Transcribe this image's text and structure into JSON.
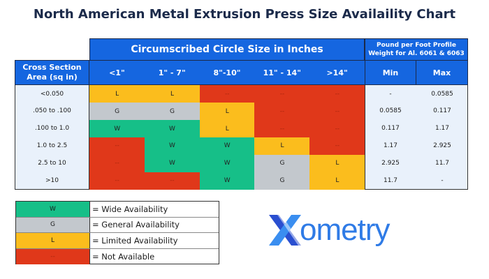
{
  "title": "North American Metal Extrusion Press Size Availaility Chart",
  "header": {
    "group_circle": "Circumscribed Circle Size in Inches",
    "group_weight": "Pound per Foot Profile Weight for Al. 6061 & 6063",
    "row_header": "Cross Section Area (sq in)",
    "columns": [
      "<1\"",
      "1\" - 7\"",
      "8\"-10\"",
      "11\" - 14\"",
      ">14\""
    ],
    "weight_columns": [
      "Min",
      "Max"
    ]
  },
  "rows": [
    {
      "area": "<0.050",
      "cells": [
        "L",
        "L",
        "--",
        "--",
        "--"
      ],
      "min": "-",
      "max": "0.0585"
    },
    {
      "area": ".050 to .100",
      "cells": [
        "G",
        "G",
        "L",
        "--",
        "--"
      ],
      "min": "0.0585",
      "max": "0.117"
    },
    {
      "area": ".100 to 1.0",
      "cells": [
        "W",
        "W",
        "L",
        "--",
        "--"
      ],
      "min": "0.117",
      "max": "1.17"
    },
    {
      "area": "1.0 to 2.5",
      "cells": [
        "--",
        "W",
        "W",
        "L",
        "--"
      ],
      "min": "1.17",
      "max": "2.925"
    },
    {
      "area": "2.5 to 10",
      "cells": [
        "--",
        "W",
        "W",
        "G",
        "L"
      ],
      "min": "2.925",
      "max": "11.7"
    },
    {
      "area": ">10",
      "cells": [
        "--",
        "--",
        "W",
        "G",
        "L"
      ],
      "min": "11.7",
      "max": "-"
    }
  ],
  "legend": [
    {
      "code": "W",
      "label": "= Wide Availability",
      "color": "#16bf88"
    },
    {
      "code": "G",
      "label": "= General Availability",
      "color": "#c3c8cd"
    },
    {
      "code": "L",
      "label": "= Limited Availability",
      "color": "#fbbd1d"
    },
    {
      "code": "--",
      "label": "= Not Available",
      "color": "#e0381a"
    }
  ],
  "logo": {
    "text": "Xometry"
  },
  "colors": {
    "header_blue": "#1566e0",
    "label_bg": "#e9f1fb"
  }
}
